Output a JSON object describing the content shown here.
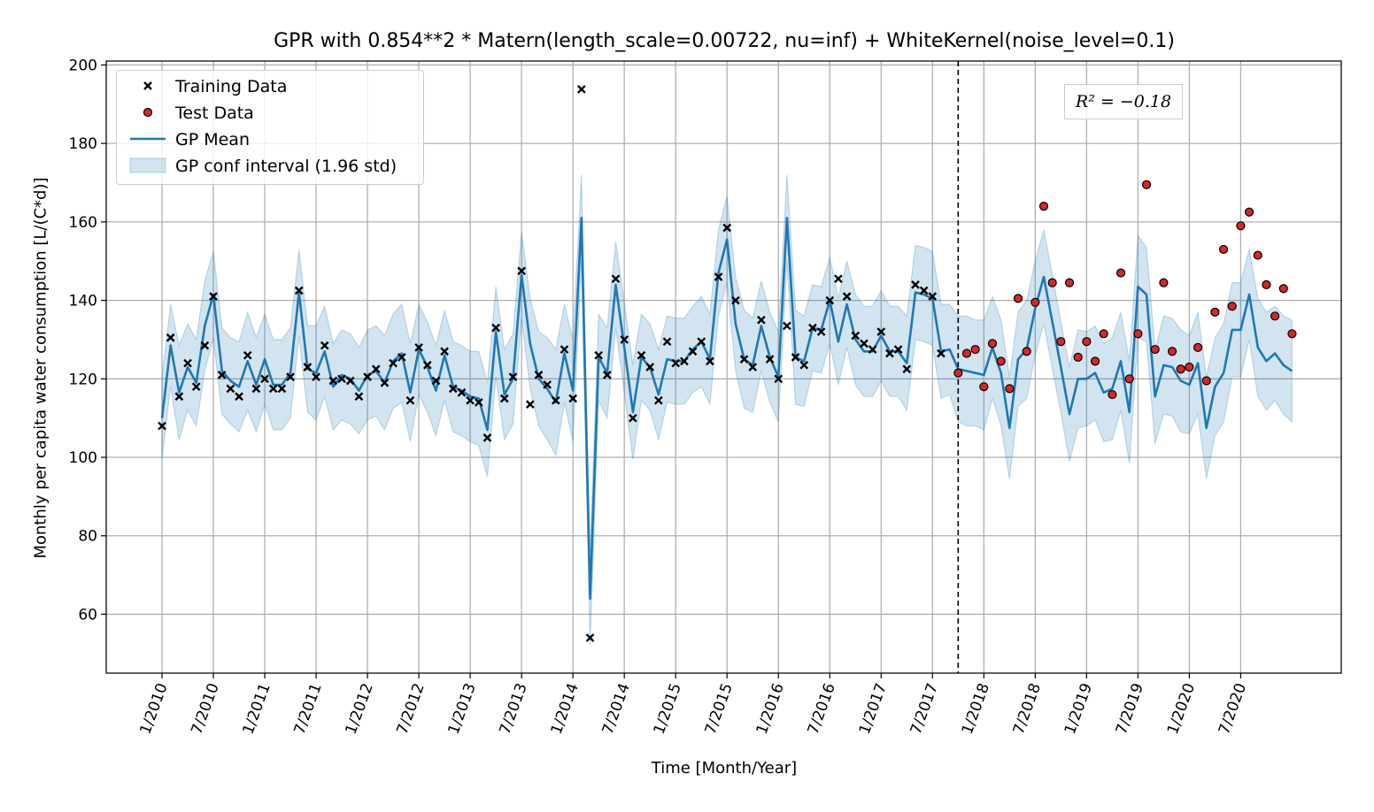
{
  "chart_data": {
    "type": "line",
    "title": "GPR with 0.854**2 * Matern(length_scale=0.00722, nu=inf) + WhiteKernel(noise_level=0.1)",
    "xlabel": "Time [Month/Year]",
    "ylabel": "Monthly per capita water consumption [L/(C*d)]",
    "ylim": [
      45,
      201
    ],
    "yticks": [
      60,
      80,
      100,
      120,
      140,
      160,
      180,
      200
    ],
    "xtick_labels": [
      "1/2010",
      "7/2010",
      "1/2011",
      "7/2011",
      "1/2012",
      "7/2012",
      "1/2013",
      "7/2013",
      "1/2014",
      "7/2014",
      "1/2015",
      "7/2015",
      "1/2016",
      "7/2016",
      "1/2017",
      "7/2017",
      "1/2018",
      "7/2018",
      "1/2019",
      "7/2019",
      "1/2020",
      "7/2020"
    ],
    "grid": true,
    "legend_position": "top-left",
    "annotation": "R² = −0.18",
    "split_line_month_index": 93,
    "colors": {
      "mean": "#1f77b4",
      "band": "#1f77b4",
      "test": "#d62728",
      "train": "#000000"
    },
    "legend": [
      "Training Data",
      "Test Data",
      "GP Mean",
      "GP conf interval (1.96 std)"
    ],
    "months_first": "1/2010",
    "train": [
      108,
      130.5,
      115.5,
      124,
      118,
      128.5,
      141,
      121,
      117.5,
      115.5,
      126,
      117.5,
      120,
      117.5,
      117.5,
      120.5,
      142.5,
      123,
      120.5,
      128.5,
      119.5,
      120,
      119.5,
      115.5,
      120.5,
      122.5,
      119,
      124,
      125.5,
      114.5,
      128,
      123.5,
      119.5,
      127,
      117.5,
      116.5,
      114.5,
      114,
      105,
      133,
      115,
      120.5,
      147.5,
      113.5,
      121,
      118.5,
      114.5,
      127.5,
      115,
      193.8,
      54,
      126,
      121,
      145.5,
      130,
      110,
      126,
      123,
      114.5,
      129.5,
      124,
      124.5,
      127,
      129.5,
      124.5,
      146,
      158.5,
      140,
      125,
      123,
      135,
      125,
      120,
      133.5,
      125.5,
      123.5,
      133,
      132,
      140,
      145.5,
      141,
      131,
      129,
      127.5,
      132,
      126.5,
      127.5,
      122.5,
      144,
      142.5,
      141,
      126.5
    ],
    "test": [
      121.5,
      126.5,
      127.5,
      118,
      129,
      124.5,
      117.5,
      140.5,
      127,
      139.5,
      164,
      144.5,
      129.5,
      144.5,
      125.5,
      129.5,
      124.5,
      131.5,
      116,
      147,
      120,
      131.5,
      169.5,
      127.5,
      144.5,
      127,
      122.5,
      123,
      128,
      119.5,
      137,
      153,
      138.5,
      159,
      162.5,
      151.5,
      144,
      136,
      143,
      131.5
    ],
    "mean": [
      110,
      128.5,
      116.5,
      123,
      119,
      133.5,
      141.5,
      122,
      119.5,
      118,
      124.5,
      118.5,
      125,
      118.5,
      118.5,
      121.5,
      142,
      122.5,
      121.5,
      127,
      118,
      121,
      120,
      117,
      121,
      122,
      119,
      124.5,
      126.5,
      116.5,
      127.5,
      123,
      117,
      126,
      118,
      117,
      115.5,
      115,
      107,
      132,
      116,
      120,
      146.5,
      129,
      120,
      117.5,
      114,
      126.5,
      117,
      161,
      64,
      125.5,
      121.5,
      144,
      128,
      111.5,
      125.5,
      123,
      116,
      125,
      124.5,
      124.5,
      127.5,
      129.5,
      125,
      147,
      155.5,
      134,
      125,
      123.5,
      133.5,
      125.5,
      120.5,
      161,
      125.5,
      124.5,
      133,
      132.5,
      140,
      129.5,
      139,
      130,
      127,
      127,
      131,
      127,
      127,
      124,
      142,
      141.5,
      140.5,
      127,
      127.5,
      122.5,
      122,
      121.5,
      121,
      128,
      121.5,
      107.5,
      125,
      127.5,
      138,
      146,
      134.5,
      123,
      111,
      120,
      120,
      121.5,
      116.5,
      117.5,
      124.5,
      111.5,
      143.5,
      141.5,
      115.5,
      123.5,
      123,
      119.5,
      118.5,
      124,
      107.5,
      118,
      121.5,
      132.5,
      132.5,
      141.5,
      128,
      124.5,
      126.5,
      123.5,
      122
    ],
    "std95": [
      10.5,
      10.5,
      12,
      11,
      11,
      11.5,
      11,
      11,
      11,
      11.5,
      12.5,
      12,
      11.5,
      11.5,
      11.5,
      11.5,
      11,
      11,
      12,
      11.5,
      11,
      11.5,
      11.5,
      11,
      11.5,
      11.5,
      12,
      12,
      12.5,
      12.5,
      11.5,
      11.5,
      11.5,
      11.5,
      11.5,
      11.5,
      11.5,
      12,
      12,
      11.5,
      11.5,
      11.5,
      11,
      11.5,
      12,
      13,
      13.5,
      12.5,
      13,
      11,
      12,
      11,
      11.5,
      11,
      11.5,
      12,
      11,
      11,
      11.5,
      11,
      11,
      11,
      11,
      11.5,
      11.5,
      11,
      11,
      12,
      12.5,
      12,
      11.5,
      11.5,
      11.5,
      11,
      12,
      11.5,
      11,
      11,
      11,
      11,
      11,
      11.5,
      11.5,
      11.5,
      11.5,
      11.5,
      11.5,
      12,
      12,
      12,
      12,
      12,
      11.5,
      13.5,
      14,
      13.5,
      14,
      13,
      13.5,
      13,
      12,
      12.5,
      12,
      12,
      12,
      11.5,
      12,
      12.5,
      12,
      12,
      12.5,
      13,
      12.5,
      13,
      13,
      12,
      12,
      12.5,
      12.5,
      13,
      12.5,
      13,
      13,
      12.5,
      12.5,
      12,
      12,
      11.5,
      12.5,
      12.5,
      12,
      12.5,
      13,
      14
    ]
  }
}
